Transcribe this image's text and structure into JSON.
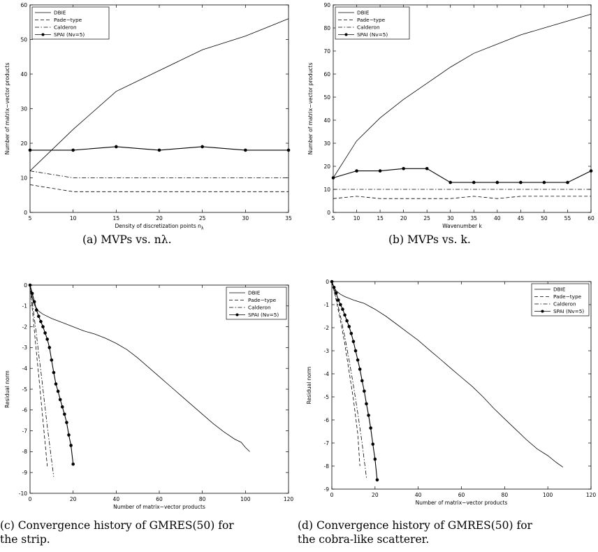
{
  "captions": {
    "a": "(a) MVPs vs. nλ.",
    "b": "(b) MVPs vs. k.",
    "c": "(c) Convergence history of GMRES(50) for\nthe strip.",
    "d": "(d) Convergence history of GMRES(50) for\nthe cobra-like scatterer."
  },
  "chart_data": [
    {
      "type": "line",
      "xlabel": "Density of discretization points n",
      "xlabel_subscript": "λ",
      "ylabel": "Number of matrix−vector products",
      "xlim": [
        5,
        35
      ],
      "ylim": [
        0,
        60
      ],
      "xticks": [
        5,
        10,
        15,
        20,
        25,
        30,
        35
      ],
      "yticks": [
        0,
        10,
        20,
        30,
        40,
        50,
        60
      ],
      "legend": "top-left",
      "series": [
        {
          "name": "DBIE",
          "style": "solid",
          "x": [
            5,
            10,
            15,
            20,
            25,
            30,
            35
          ],
          "y": [
            12,
            24,
            35,
            41,
            47,
            51,
            56
          ]
        },
        {
          "name": "Pade−type",
          "style": "dashed",
          "x": [
            5,
            10,
            15,
            20,
            25,
            30,
            35
          ],
          "y": [
            8,
            6,
            6,
            6,
            6,
            6,
            6
          ]
        },
        {
          "name": "Calderon",
          "style": "dashdot",
          "x": [
            5,
            10,
            15,
            20,
            25,
            30,
            35
          ],
          "y": [
            12,
            10,
            10,
            10,
            10,
            10,
            10
          ]
        },
        {
          "name": "SPAI (Nv=5)",
          "style": "solid-marker",
          "x": [
            5,
            10,
            15,
            20,
            25,
            30,
            35
          ],
          "y": [
            18,
            18,
            19,
            18,
            19,
            18,
            18
          ]
        }
      ]
    },
    {
      "type": "line",
      "xlabel": "Wavenumber k",
      "ylabel": "Number of matrix−vector products",
      "xlim": [
        5,
        60
      ],
      "ylim": [
        0,
        90
      ],
      "xticks": [
        5,
        10,
        15,
        20,
        25,
        30,
        35,
        40,
        45,
        50,
        55,
        60
      ],
      "yticks": [
        0,
        10,
        20,
        30,
        40,
        50,
        60,
        70,
        80,
        90
      ],
      "legend": "top-left",
      "series": [
        {
          "name": "DBIE",
          "style": "solid",
          "x": [
            5,
            10,
            15,
            20,
            25,
            30,
            35,
            40,
            45,
            50,
            55,
            60
          ],
          "y": [
            15,
            31,
            41,
            49,
            56,
            63,
            69,
            73,
            77,
            80,
            83,
            86
          ]
        },
        {
          "name": "Pade−type",
          "style": "dashed",
          "x": [
            5,
            10,
            15,
            20,
            25,
            30,
            35,
            40,
            45,
            50,
            55,
            60
          ],
          "y": [
            6,
            7,
            6,
            6,
            6,
            6,
            7,
            6,
            7,
            7,
            7,
            7
          ]
        },
        {
          "name": "Calderon",
          "style": "dashdot",
          "x": [
            5,
            10,
            15,
            20,
            25,
            30,
            35,
            40,
            45,
            50,
            55,
            60
          ],
          "y": [
            10,
            10,
            10,
            10,
            10,
            10,
            10,
            10,
            10,
            10,
            10,
            10
          ]
        },
        {
          "name": "SPAI (Nv=5)",
          "style": "solid-marker",
          "x": [
            5,
            10,
            15,
            20,
            25,
            30,
            35,
            40,
            45,
            50,
            55,
            60
          ],
          "y": [
            15,
            18,
            18,
            19,
            19,
            13,
            13,
            13,
            13,
            13,
            13,
            18
          ]
        }
      ]
    },
    {
      "type": "line",
      "xlabel": "Number of matrix−vector products",
      "ylabel": "Residual norm",
      "xlim": [
        0,
        120
      ],
      "ylim": [
        -10,
        0
      ],
      "xticks": [
        0,
        20,
        40,
        60,
        80,
        100,
        120
      ],
      "yticks": [
        0,
        -1,
        -2,
        -3,
        -4,
        -5,
        -6,
        -7,
        -8,
        -9,
        -10
      ],
      "legend": "top-right",
      "series": [
        {
          "name": "DBIE",
          "style": "solid",
          "x": [
            0,
            1,
            2,
            4,
            6,
            10,
            15,
            20,
            25,
            30,
            35,
            40,
            45,
            50,
            55,
            60,
            65,
            70,
            75,
            80,
            85,
            90,
            95,
            98,
            100,
            102
          ],
          "y": [
            0,
            -0.6,
            -0.95,
            -1.25,
            -1.4,
            -1.6,
            -1.8,
            -2.0,
            -2.2,
            -2.35,
            -2.55,
            -2.8,
            -3.1,
            -3.5,
            -3.95,
            -4.4,
            -4.85,
            -5.3,
            -5.75,
            -6.2,
            -6.65,
            -7.05,
            -7.4,
            -7.55,
            -7.8,
            -8.0
          ]
        },
        {
          "name": "Pade−type",
          "style": "dashed",
          "x": [
            0,
            1,
            2,
            3,
            4,
            5,
            6,
            7,
            8
          ],
          "y": [
            0,
            -1.1,
            -2.2,
            -3.3,
            -4.3,
            -5.4,
            -6.5,
            -7.6,
            -8.7
          ]
        },
        {
          "name": "Calderon",
          "style": "dashdot",
          "x": [
            0,
            1,
            2,
            3,
            4,
            5,
            6,
            7,
            8,
            9,
            10,
            11
          ],
          "y": [
            0,
            -0.8,
            -1.6,
            -2.4,
            -3.3,
            -4.1,
            -5.0,
            -5.9,
            -6.8,
            -7.6,
            -8.4,
            -9.2
          ]
        },
        {
          "name": "SPAI (Nv=5)",
          "style": "solid-marker",
          "x": [
            0,
            1,
            2,
            3,
            4,
            5,
            6,
            7,
            8,
            9,
            10,
            11,
            12,
            13,
            14,
            15,
            16,
            17,
            18,
            19,
            20
          ],
          "y": [
            0,
            -0.4,
            -0.8,
            -1.2,
            -1.5,
            -1.75,
            -2.0,
            -2.3,
            -2.6,
            -3.0,
            -3.6,
            -4.2,
            -4.75,
            -5.1,
            -5.5,
            -5.85,
            -6.2,
            -6.6,
            -7.2,
            -7.7,
            -8.6
          ]
        }
      ]
    },
    {
      "type": "line",
      "xlabel": "Number of matrix−vector products",
      "ylabel": "Residual norm",
      "xlim": [
        0,
        120
      ],
      "ylim": [
        -9,
        0
      ],
      "xticks": [
        0,
        20,
        40,
        60,
        80,
        100,
        120
      ],
      "yticks": [
        0,
        -1,
        -2,
        -3,
        -4,
        -5,
        -6,
        -7,
        -8,
        -9
      ],
      "legend": "top-right",
      "series": [
        {
          "name": "DBIE",
          "style": "solid",
          "x": [
            0,
            1,
            2,
            4,
            6,
            10,
            15,
            20,
            25,
            30,
            35,
            40,
            45,
            50,
            55,
            60,
            65,
            70,
            75,
            80,
            85,
            90,
            95,
            100,
            104,
            107
          ],
          "y": [
            0,
            -0.25,
            -0.4,
            -0.55,
            -0.65,
            -0.8,
            -0.95,
            -1.2,
            -1.5,
            -1.85,
            -2.2,
            -2.55,
            -2.95,
            -3.35,
            -3.75,
            -4.15,
            -4.55,
            -5.0,
            -5.5,
            -5.95,
            -6.4,
            -6.85,
            -7.25,
            -7.55,
            -7.85,
            -8.05
          ]
        },
        {
          "name": "Pade−type",
          "style": "dashed",
          "x": [
            0,
            2,
            4,
            6,
            8,
            10,
            12,
            13
          ],
          "y": [
            0,
            -0.8,
            -1.7,
            -2.7,
            -3.9,
            -5.1,
            -6.6,
            -8.0
          ]
        },
        {
          "name": "Calderon",
          "style": "dashdot",
          "x": [
            0,
            2,
            4,
            6,
            8,
            10,
            12,
            14,
            16
          ],
          "y": [
            0,
            -0.7,
            -1.5,
            -2.4,
            -3.4,
            -4.5,
            -5.7,
            -7.0,
            -8.5
          ]
        },
        {
          "name": "SPAI (Nv=5)",
          "style": "solid-marker",
          "x": [
            0,
            1,
            2,
            3,
            4,
            5,
            6,
            7,
            8,
            9,
            10,
            11,
            12,
            13,
            14,
            15,
            16,
            17,
            18,
            19,
            20,
            21
          ],
          "y": [
            0,
            -0.25,
            -0.5,
            -0.8,
            -1.0,
            -1.2,
            -1.45,
            -1.7,
            -1.95,
            -2.25,
            -2.6,
            -3.0,
            -3.4,
            -3.8,
            -4.3,
            -4.75,
            -5.3,
            -5.8,
            -6.35,
            -7.05,
            -7.7,
            -8.6
          ]
        }
      ]
    }
  ]
}
